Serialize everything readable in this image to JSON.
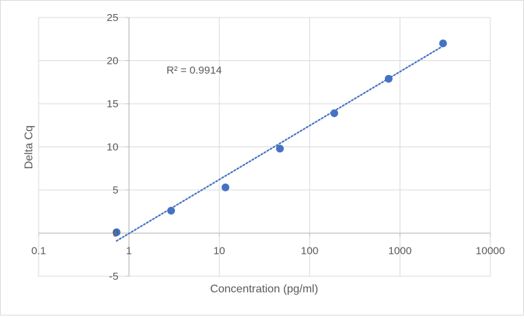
{
  "chart_data": {
    "type": "scatter",
    "title": "",
    "xlabel": "Concentration (pg/ml)",
    "ylabel": "Delta Cq",
    "x_scale": "log",
    "xlim": [
      0.1,
      10000
    ],
    "ylim": [
      -5,
      25
    ],
    "x_ticks": [
      "0.1",
      "1",
      "10",
      "100",
      "1000",
      "10000"
    ],
    "y_ticks": [
      "-5",
      "0",
      "5",
      "10",
      "15",
      "20",
      "25"
    ],
    "grid": true,
    "legend": "none",
    "marker_color": "#4472C4",
    "series": [
      {
        "x": [
          0.73,
          2.93,
          11.7,
          46.9,
          187.5,
          750,
          3000
        ],
        "y": [
          0.1,
          2.6,
          5.3,
          9.8,
          13.9,
          17.9,
          22.0
        ]
      }
    ],
    "trendline": {
      "type": "log",
      "style": "dotted",
      "color": "#4472C4",
      "x_range": [
        0.73,
        3000
      ],
      "y_range": [
        -0.9,
        21.7
      ]
    },
    "annotations": [
      "R² = 0.9914"
    ]
  }
}
